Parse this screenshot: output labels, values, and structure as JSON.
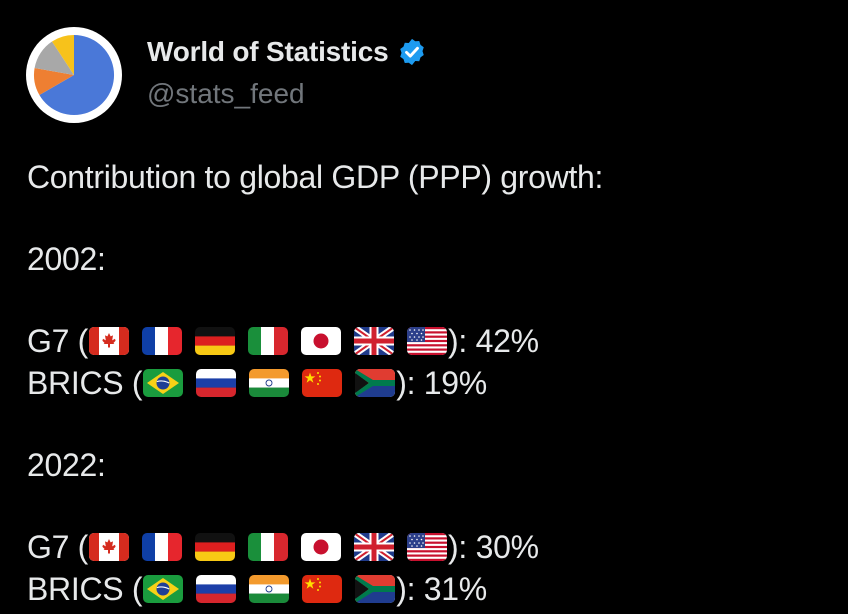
{
  "account": {
    "display_name": "World of Statistics",
    "handle": "@stats_feed",
    "verified": true,
    "avatar": {
      "colors": [
        "#4a78d8",
        "#ee7f32",
        "#a8a8a8",
        "#f7c21b"
      ]
    }
  },
  "tweet": {
    "heading": "Contribution to global GDP (PPP) growth:",
    "sections": [
      {
        "year_label": "2002:",
        "groups": [
          {
            "label": "G7 (",
            "flags": [
              "canada-flag",
              "france-flag",
              "germany-flag",
              "italy-flag",
              "japan-flag",
              "uk-flag",
              "usa-flag"
            ],
            "value": "): 42%"
          },
          {
            "label": "BRICS (",
            "flags": [
              "brazil-flag",
              "russia-flag",
              "india-flag",
              "china-flag",
              "south-africa-flag"
            ],
            "value": "): 19%"
          }
        ]
      },
      {
        "year_label": "2022:",
        "groups": [
          {
            "label": "G7 (",
            "flags": [
              "canada-flag",
              "france-flag",
              "germany-flag",
              "italy-flag",
              "japan-flag",
              "uk-flag",
              "usa-flag"
            ],
            "value": "): 30%"
          },
          {
            "label": "BRICS (",
            "flags": [
              "brazil-flag",
              "russia-flag",
              "india-flag",
              "china-flag",
              "south-africa-flag"
            ],
            "value": "): 31%"
          }
        ]
      }
    ]
  },
  "colors": {
    "background": "#000000",
    "text": "#e7e9ea",
    "handle": "#71767b",
    "verified": "#1d9bf0"
  }
}
